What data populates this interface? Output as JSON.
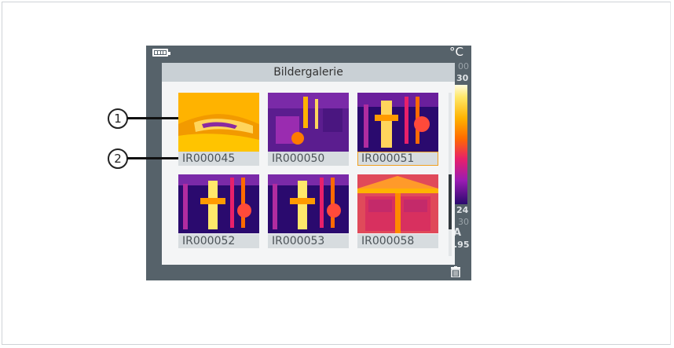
{
  "header": {
    "title": "Bildergalerie"
  },
  "status": {
    "battery_icon": "battery-full-icon",
    "unit": "°C",
    "delete_icon": "trash-icon"
  },
  "scale": {
    "top_partial": "00",
    "max": "30",
    "min": "24",
    "bottom_partial": "30",
    "mode": "A",
    "emissivity": ".95"
  },
  "gallery": {
    "items": [
      {
        "label": "IR000045",
        "selected": false
      },
      {
        "label": "IR000050",
        "selected": false
      },
      {
        "label": "IR000051",
        "selected": true
      },
      {
        "label": "IR000052",
        "selected": false
      },
      {
        "label": "IR000053",
        "selected": false
      },
      {
        "label": "IR000058",
        "selected": false
      }
    ]
  },
  "callouts": {
    "one": "1",
    "two": "2"
  },
  "colors": {
    "bezel": "#56626a",
    "header": "#c9d0d5",
    "caption": "#d7dcdf",
    "selection": "#f0a020"
  }
}
